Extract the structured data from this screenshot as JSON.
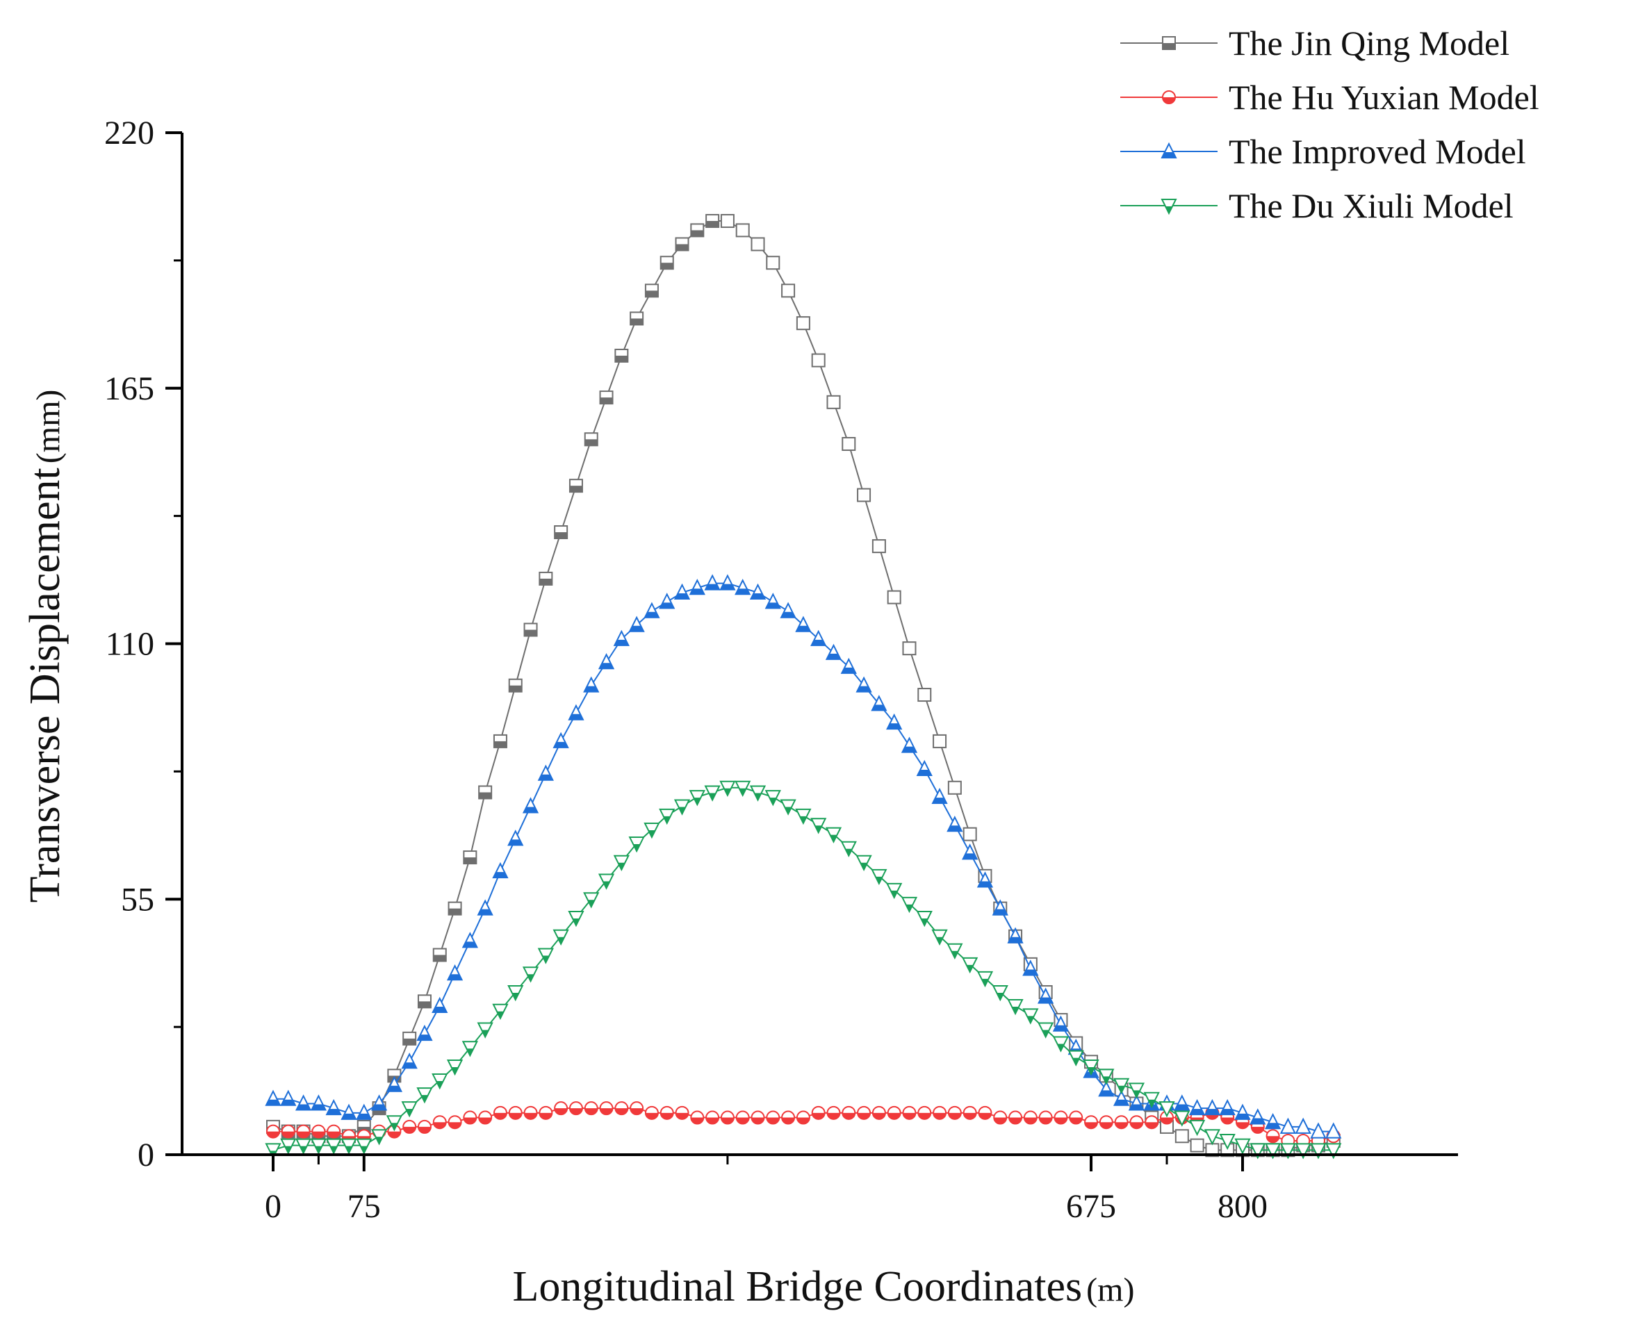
{
  "chart_data": {
    "type": "line",
    "title": "",
    "xlabel": "Longitudinal Bridge Coordinates",
    "xlabel_unit": "(m)",
    "ylabel": "Transverse Displacement",
    "ylabel_unit": "(mm)",
    "xlim": [
      -50,
      950
    ],
    "ylim": [
      0,
      220
    ],
    "x_tick_labels": [
      "0",
      "75",
      "675",
      "800"
    ],
    "x_tick_values": [
      0,
      75,
      675,
      800
    ],
    "x_minor_ticks": [
      37.5,
      375,
      737.5
    ],
    "y_tick_labels": [
      "0",
      "55",
      "110",
      "165",
      "220"
    ],
    "y_tick_values": [
      0,
      55,
      110,
      165,
      220
    ],
    "y_minor_ticks": [
      27.5,
      82.5,
      137.5,
      192.5
    ],
    "legend_position": "top-right",
    "series": [
      {
        "name": "The Jin Qing Model",
        "color": "#6e6e6e",
        "marker": "square-half",
        "x": [
          0,
          12.5,
          25,
          37.5,
          50,
          62.5,
          75,
          87.5,
          100,
          112.5,
          125,
          137.5,
          150,
          162.5,
          175,
          187.5,
          200,
          212.5,
          225,
          237.5,
          250,
          262.5,
          275,
          287.5,
          300,
          312.5,
          325,
          337.5,
          350,
          362.5,
          375,
          387.5,
          400,
          412.5,
          425,
          437.5,
          450,
          462.5,
          475,
          487.5,
          500,
          512.5,
          525,
          537.5,
          550,
          562.5,
          575,
          587.5,
          600,
          612.5,
          625,
          637.5,
          650,
          662.5,
          675,
          687.5,
          700,
          712.5,
          725,
          737.5,
          750,
          762.5,
          775,
          787.5,
          800,
          812.5,
          825,
          837.5,
          850,
          862.5,
          875
        ],
        "values": [
          6,
          5,
          5,
          4,
          4,
          4,
          6,
          10,
          17,
          25,
          33,
          43,
          53,
          64,
          78,
          89,
          101,
          113,
          124,
          134,
          144,
          154,
          163,
          172,
          180,
          186,
          192,
          196,
          199,
          201,
          201,
          199,
          196,
          192,
          186,
          179,
          171,
          162,
          153,
          142,
          131,
          120,
          109,
          99,
          89,
          79,
          69,
          60,
          53,
          47,
          41,
          35,
          29,
          24,
          20,
          17,
          14,
          11,
          8,
          6,
          4,
          2,
          1,
          1,
          1,
          1,
          1,
          1,
          2,
          2,
          3
        ],
        "filled_upto_x": 362.5
      },
      {
        "name": "The Hu Yuxian Model",
        "color": "#f0393a",
        "marker": "circle-half",
        "x": [
          0,
          12.5,
          25,
          37.5,
          50,
          62.5,
          75,
          87.5,
          100,
          112.5,
          125,
          137.5,
          150,
          162.5,
          175,
          187.5,
          200,
          212.5,
          225,
          237.5,
          250,
          262.5,
          275,
          287.5,
          300,
          312.5,
          325,
          337.5,
          350,
          362.5,
          375,
          387.5,
          400,
          412.5,
          425,
          437.5,
          450,
          462.5,
          475,
          487.5,
          500,
          512.5,
          525,
          537.5,
          550,
          562.5,
          575,
          587.5,
          600,
          612.5,
          625,
          637.5,
          650,
          662.5,
          675,
          687.5,
          700,
          712.5,
          725,
          737.5,
          750,
          762.5,
          775,
          787.5,
          800,
          812.5,
          825,
          837.5,
          850,
          862.5,
          875
        ],
        "values": [
          5,
          5,
          5,
          5,
          5,
          4,
          4,
          5,
          5,
          6,
          6,
          7,
          7,
          8,
          8,
          9,
          9,
          9,
          9,
          10,
          10,
          10,
          10,
          10,
          10,
          9,
          9,
          9,
          8,
          8,
          8,
          8,
          8,
          8,
          8,
          8,
          9,
          9,
          9,
          9,
          9,
          9,
          9,
          9,
          9,
          9,
          9,
          9,
          8,
          8,
          8,
          8,
          8,
          8,
          7,
          7,
          7,
          7,
          7,
          8,
          8,
          8,
          9,
          8,
          7,
          6,
          4,
          3,
          3,
          3,
          4
        ],
        "filled_upto_x": 825
      },
      {
        "name": "The Improved Model",
        "color": "#1e6fd8",
        "marker": "triangle-up-half",
        "x": [
          0,
          12.5,
          25,
          37.5,
          50,
          62.5,
          75,
          87.5,
          100,
          112.5,
          125,
          137.5,
          150,
          162.5,
          175,
          187.5,
          200,
          212.5,
          225,
          237.5,
          250,
          262.5,
          275,
          287.5,
          300,
          312.5,
          325,
          337.5,
          350,
          362.5,
          375,
          387.5,
          400,
          412.5,
          425,
          437.5,
          450,
          462.5,
          475,
          487.5,
          500,
          512.5,
          525,
          537.5,
          550,
          562.5,
          575,
          587.5,
          600,
          612.5,
          625,
          637.5,
          650,
          662.5,
          675,
          687.5,
          700,
          712.5,
          725,
          737.5,
          750,
          762.5,
          775,
          787.5,
          800,
          812.5,
          825,
          837.5,
          850,
          862.5,
          875
        ],
        "values": [
          12,
          12,
          11,
          11,
          10,
          9,
          9,
          11,
          15,
          20,
          26,
          32,
          39,
          46,
          53,
          61,
          68,
          75,
          82,
          89,
          95,
          101,
          106,
          111,
          114,
          117,
          119,
          121,
          122,
          123,
          123,
          122,
          121,
          119,
          117,
          114,
          111,
          108,
          105,
          101,
          97,
          93,
          88,
          83,
          77,
          71,
          65,
          59,
          53,
          47,
          40,
          34,
          28,
          23,
          18,
          14,
          12,
          11,
          11,
          11,
          11,
          10,
          10,
          10,
          9,
          8,
          7,
          6,
          6,
          5,
          5
        ],
        "filled_upto_x": 825
      },
      {
        "name": "The Du Xiuli Model",
        "color": "#1aa058",
        "marker": "triangle-down-half",
        "x": [
          0,
          12.5,
          25,
          37.5,
          50,
          62.5,
          75,
          87.5,
          100,
          112.5,
          125,
          137.5,
          150,
          162.5,
          175,
          187.5,
          200,
          212.5,
          225,
          237.5,
          250,
          262.5,
          275,
          287.5,
          300,
          312.5,
          325,
          337.5,
          350,
          362.5,
          375,
          387.5,
          400,
          412.5,
          425,
          437.5,
          450,
          462.5,
          475,
          487.5,
          500,
          512.5,
          525,
          537.5,
          550,
          562.5,
          575,
          587.5,
          600,
          612.5,
          625,
          637.5,
          650,
          662.5,
          675,
          687.5,
          700,
          712.5,
          725,
          737.5,
          750,
          762.5,
          775,
          787.5,
          800,
          812.5,
          825,
          837.5,
          850,
          862.5,
          875
        ],
        "values": [
          1,
          2,
          2,
          2,
          2,
          2,
          2,
          4,
          7,
          10,
          13,
          16,
          19,
          23,
          27,
          31,
          35,
          39,
          43,
          47,
          51,
          55,
          59,
          63,
          67,
          70,
          73,
          75,
          77,
          78,
          79,
          79,
          78,
          77,
          75,
          73,
          71,
          69,
          66,
          63,
          60,
          57,
          54,
          51,
          47,
          44,
          41,
          38,
          35,
          32,
          30,
          27,
          24,
          21,
          19,
          17,
          15,
          14,
          12,
          10,
          8,
          6,
          4,
          3,
          2,
          1,
          1,
          1,
          1,
          1,
          1
        ],
        "filled_upto_x": 725
      }
    ]
  }
}
